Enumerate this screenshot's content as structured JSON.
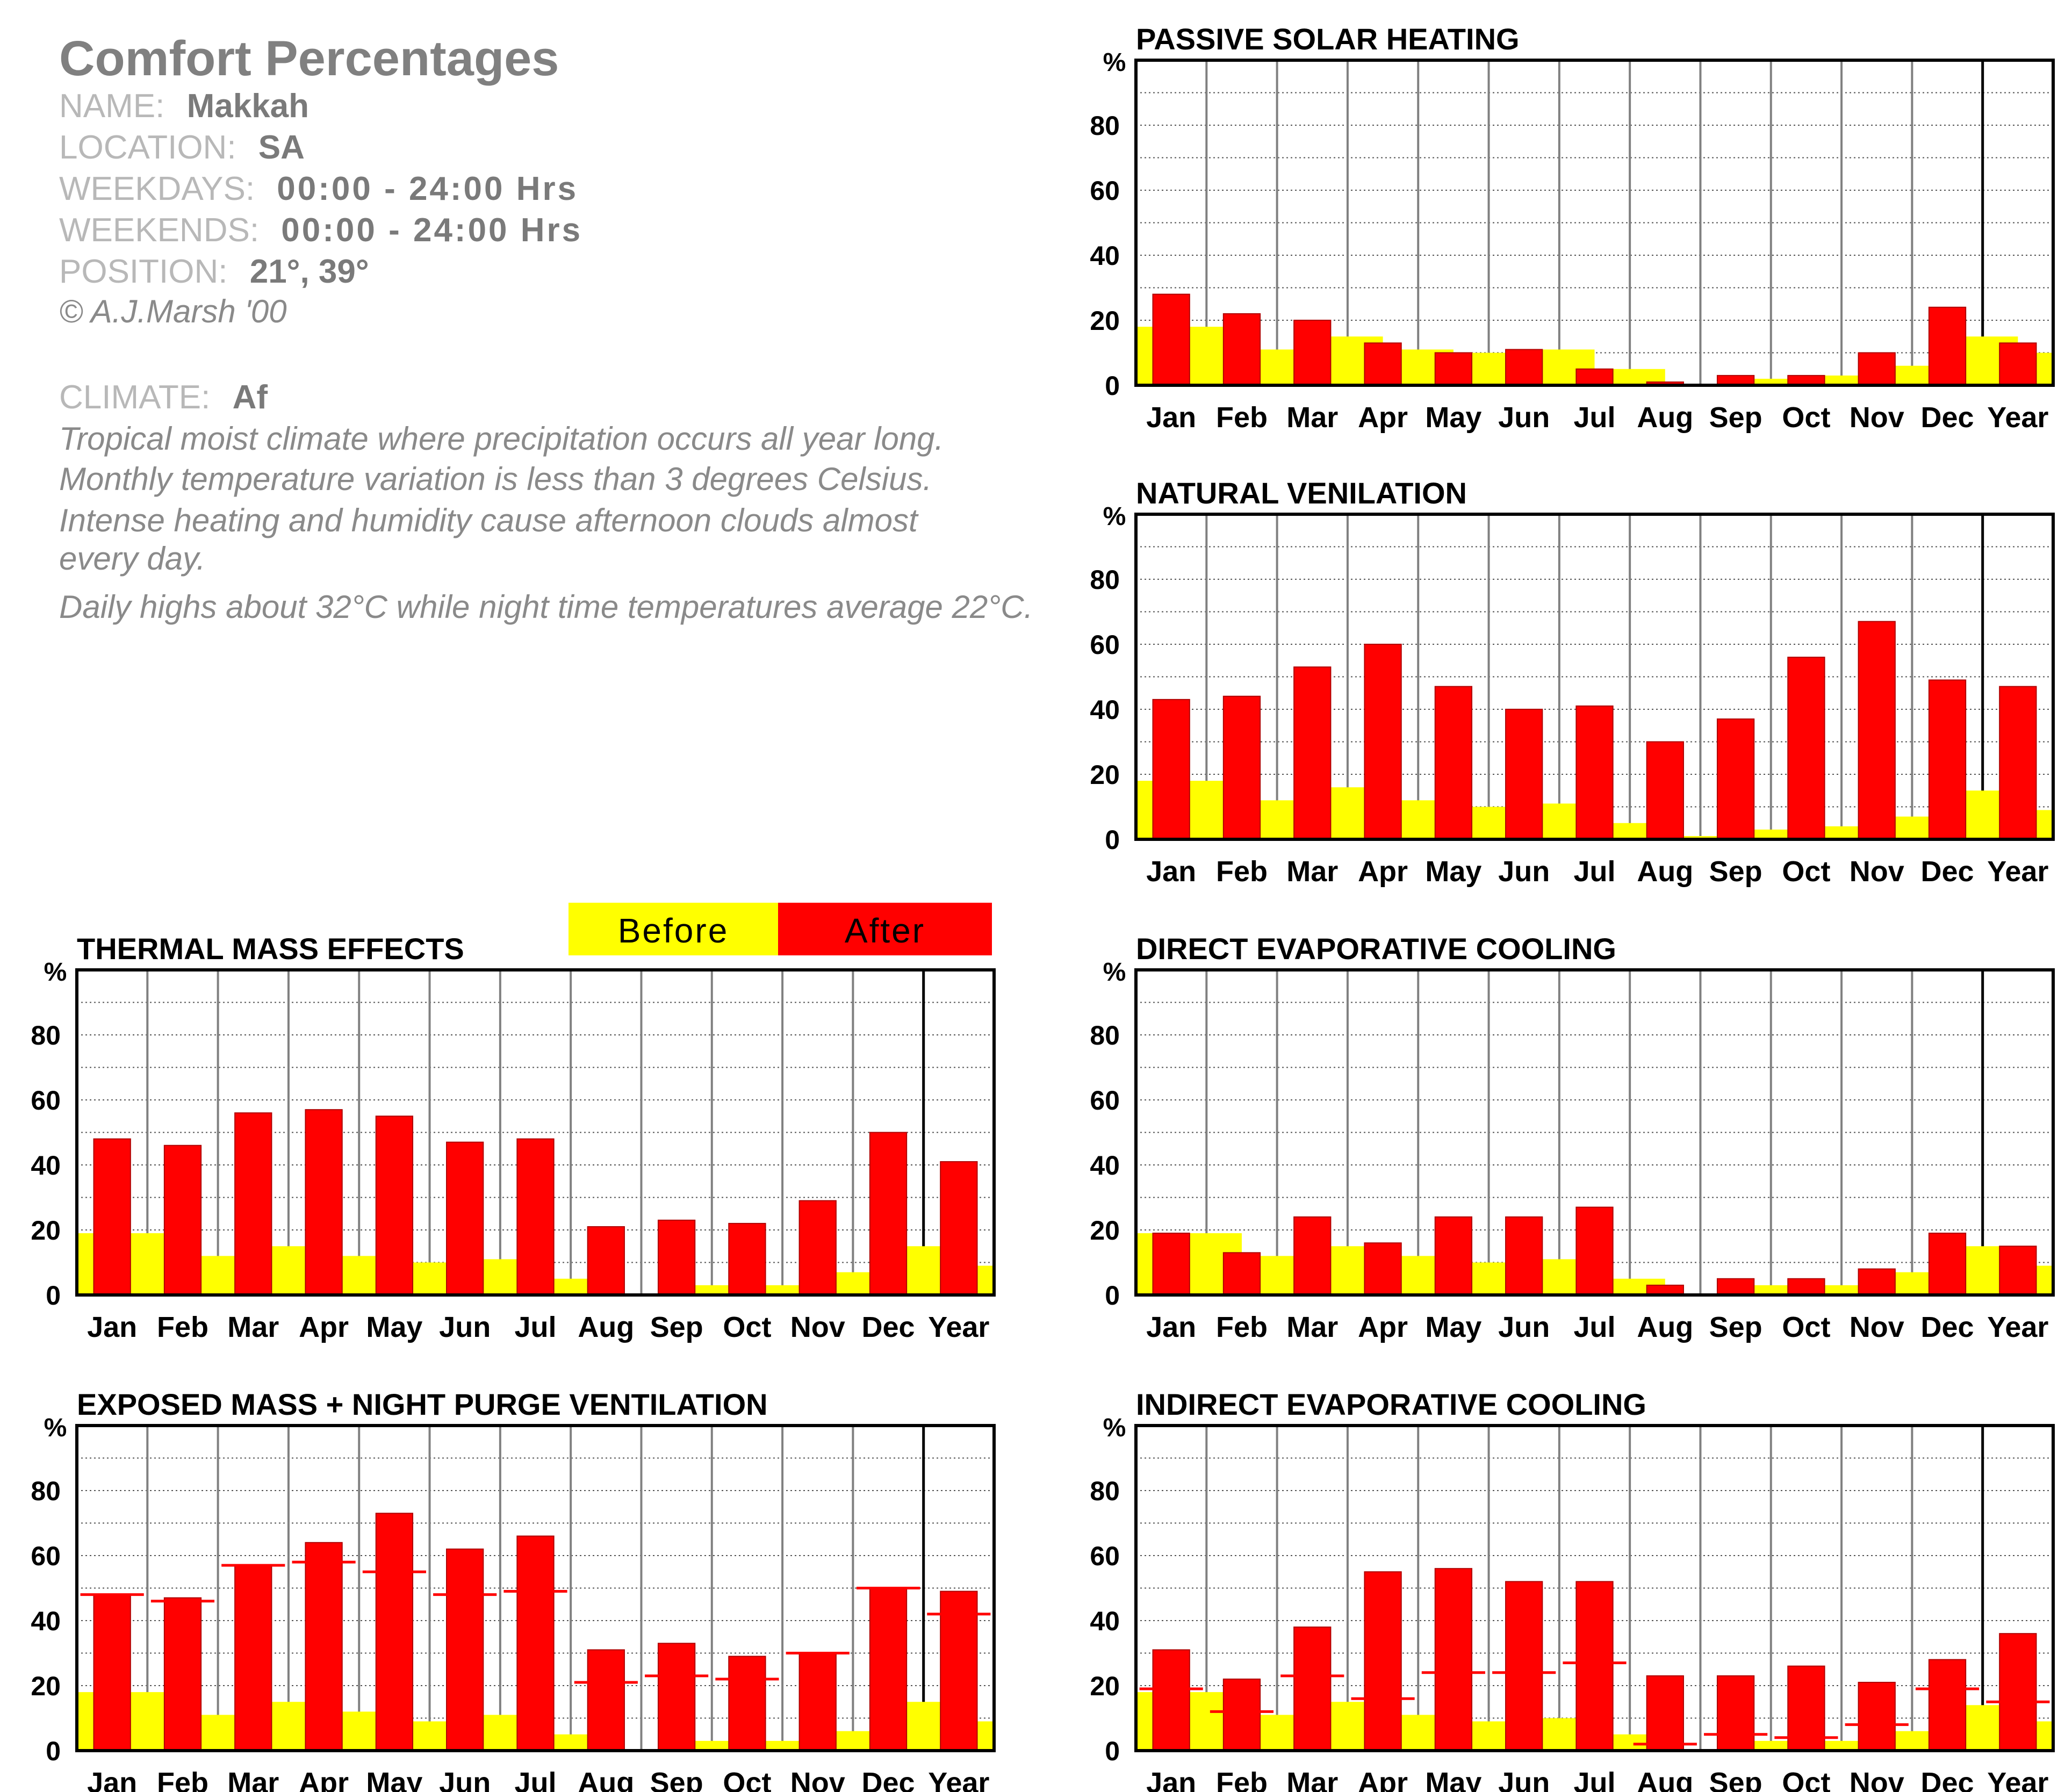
{
  "info": {
    "title": "Comfort Percentages",
    "name_label": "NAME:",
    "name_value": "Makkah",
    "location_label": "LOCATION:",
    "location_value": "SA",
    "weekdays_label": "WEEKDAYS:",
    "weekdays_value": "00:00 - 24:00 Hrs",
    "weekends_label": "WEEKENDS:",
    "weekends_value": "00:00 - 24:00 Hrs",
    "position_label": "POSITION:",
    "position_value": "21°, 39°",
    "copyright": "© A.J.Marsh '00",
    "climate_label": "CLIMATE:",
    "climate_value": "Af",
    "climate_lines": [
      "Tropical moist climate where precipitation occurs all year long.",
      "Monthly temperature variation is less than 3 degrees Celsius.",
      "Intense heating and humidity cause afternoon clouds almost",
      "every day.",
      "Daily highs about 32°C while night time temperatures average 22°C."
    ]
  },
  "legend": {
    "before_label": "Before",
    "after_label": "After",
    "before_color": "#ffff00",
    "after_color": "#ff0000"
  },
  "chart_data": [
    {
      "type": "bar",
      "title": "PASSIVE SOLAR HEATING",
      "ylabel": "%",
      "ylim": [
        0,
        100
      ],
      "yticks": [
        0,
        20,
        40,
        60,
        80
      ],
      "categories": [
        "Jan",
        "Feb",
        "Mar",
        "Apr",
        "May",
        "Jun",
        "Jul",
        "Aug",
        "Sep",
        "Oct",
        "Nov",
        "Dec",
        "Year"
      ],
      "series": [
        {
          "name": "Before",
          "values": [
            18,
            11,
            15,
            11,
            10,
            11,
            5,
            0,
            2,
            3,
            6,
            15,
            10
          ]
        },
        {
          "name": "After",
          "values": [
            28,
            22,
            20,
            13,
            10,
            11,
            5,
            1,
            3,
            3,
            10,
            24,
            13
          ]
        }
      ]
    },
    {
      "type": "bar",
      "title": "NATURAL VENILATION",
      "ylabel": "%",
      "ylim": [
        0,
        100
      ],
      "yticks": [
        0,
        20,
        40,
        60,
        80
      ],
      "categories": [
        "Jan",
        "Feb",
        "Mar",
        "Apr",
        "May",
        "Jun",
        "Jul",
        "Aug",
        "Sep",
        "Oct",
        "Nov",
        "Dec",
        "Year"
      ],
      "series": [
        {
          "name": "Before",
          "values": [
            18,
            12,
            16,
            12,
            10,
            11,
            5,
            1,
            3,
            4,
            7,
            15,
            9
          ]
        },
        {
          "name": "After",
          "values": [
            43,
            44,
            53,
            60,
            47,
            40,
            41,
            30,
            37,
            56,
            67,
            49,
            47
          ]
        }
      ]
    },
    {
      "type": "bar",
      "title": "THERMAL MASS EFFECTS",
      "ylabel": "%",
      "ylim": [
        0,
        100
      ],
      "yticks": [
        0,
        20,
        40,
        60,
        80
      ],
      "categories": [
        "Jan",
        "Feb",
        "Mar",
        "Apr",
        "May",
        "Jun",
        "Jul",
        "Aug",
        "Sep",
        "Oct",
        "Nov",
        "Dec",
        "Year"
      ],
      "series": [
        {
          "name": "Before",
          "values": [
            19,
            12,
            15,
            12,
            10,
            11,
            5,
            0,
            3,
            3,
            7,
            15,
            9
          ]
        },
        {
          "name": "After",
          "values": [
            48,
            46,
            56,
            57,
            55,
            47,
            48,
            21,
            23,
            22,
            29,
            50,
            41
          ]
        }
      ]
    },
    {
      "type": "bar",
      "title": "DIRECT EVAPORATIVE COOLING",
      "ylabel": "%",
      "ylim": [
        0,
        100
      ],
      "yticks": [
        0,
        20,
        40,
        60,
        80
      ],
      "categories": [
        "Jan",
        "Feb",
        "Mar",
        "Apr",
        "May",
        "Jun",
        "Jul",
        "Aug",
        "Sep",
        "Oct",
        "Nov",
        "Dec",
        "Year"
      ],
      "series": [
        {
          "name": "Before",
          "values": [
            19,
            12,
            15,
            12,
            10,
            11,
            5,
            0,
            3,
            3,
            7,
            15,
            9
          ]
        },
        {
          "name": "After",
          "values": [
            19,
            13,
            24,
            16,
            24,
            24,
            27,
            3,
            5,
            5,
            8,
            19,
            15
          ]
        }
      ]
    },
    {
      "type": "bar",
      "title": "EXPOSED MASS + NIGHT PURGE VENTILATION",
      "ylabel": "%",
      "ylim": [
        0,
        100
      ],
      "yticks": [
        0,
        20,
        40,
        60,
        80
      ],
      "categories": [
        "Jan",
        "Feb",
        "Mar",
        "Apr",
        "May",
        "Jun",
        "Jul",
        "Aug",
        "Sep",
        "Oct",
        "Nov",
        "Dec",
        "Year"
      ],
      "series": [
        {
          "name": "Before",
          "values": [
            18,
            11,
            15,
            12,
            9,
            11,
            5,
            0,
            3,
            3,
            6,
            15,
            9
          ]
        },
        {
          "name": "After",
          "values": [
            48,
            47,
            57,
            64,
            73,
            62,
            66,
            31,
            33,
            29,
            30,
            50,
            49
          ]
        },
        {
          "name": "Reference",
          "values": [
            48,
            46,
            57,
            58,
            55,
            48,
            49,
            21,
            23,
            22,
            30,
            50,
            42
          ]
        }
      ]
    },
    {
      "type": "bar",
      "title": "INDIRECT EVAPORATIVE COOLING",
      "ylabel": "%",
      "ylim": [
        0,
        100
      ],
      "yticks": [
        0,
        20,
        40,
        60,
        80
      ],
      "categories": [
        "Jan",
        "Feb",
        "Mar",
        "Apr",
        "May",
        "Jun",
        "Jul",
        "Aug",
        "Sep",
        "Oct",
        "Nov",
        "Dec",
        "Year"
      ],
      "series": [
        {
          "name": "Before",
          "values": [
            18,
            11,
            15,
            11,
            9,
            10,
            5,
            0,
            3,
            3,
            6,
            14,
            9
          ]
        },
        {
          "name": "After",
          "values": [
            31,
            22,
            38,
            55,
            56,
            52,
            52,
            23,
            23,
            26,
            21,
            28,
            36
          ]
        },
        {
          "name": "Reference",
          "values": [
            19,
            12,
            23,
            16,
            24,
            24,
            27,
            2,
            5,
            4,
            8,
            19,
            15
          ]
        }
      ]
    }
  ]
}
